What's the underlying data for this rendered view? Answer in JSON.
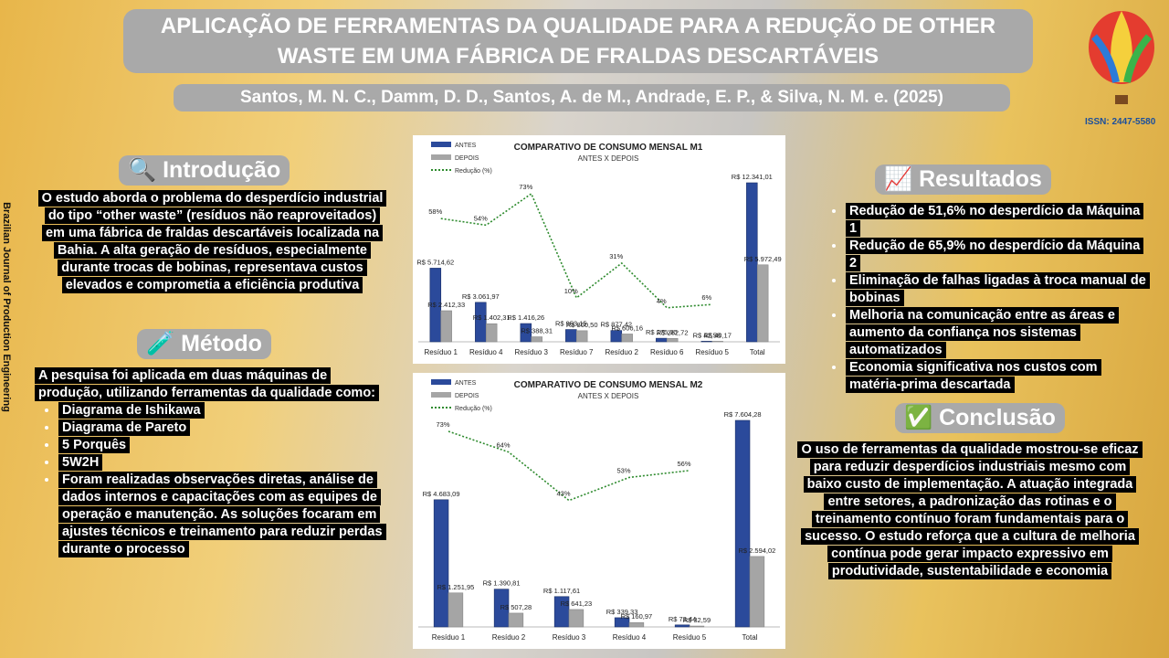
{
  "journal": "Brazilian Journal of Production Engineering",
  "header": {
    "title": "APLICAÇÃO DE FERRAMENTAS DA QUALIDADE PARA A REDUÇÃO DE OTHER WASTE EM UMA FÁBRICA DE FRALDAS DESCARTÁVEIS",
    "authors": "Santos, M. N. C., Damm, D. D., Santos, A. de M., Andrade, E. P., & Silva, N. M. e. (2025)",
    "issn": "ISSN: 2447-5580"
  },
  "introducao": {
    "heading": "🔍 Introdução",
    "text": "O estudo aborda o problema do desperdício industrial do tipo “other waste” (resíduos não reaproveitados) em uma fábrica de fraldas descartáveis localizada na Bahia. A alta geração de resíduos, especialmente durante trocas de bobinas, representava custos elevados e comprometia a eficiência produtiva"
  },
  "metodo": {
    "heading": "🧪 Método",
    "text": "A pesquisa foi aplicada em duas máquinas de produção, utilizando ferramentas da qualidade como:",
    "items": [
      "Diagrama de Ishikawa",
      "Diagrama de Pareto",
      "5 Porquês",
      "5W2H",
      "Foram realizadas observações diretas, análise de dados internos e capacitações com as equipes de operação e manutenção. As soluções focaram em ajustes técnicos e treinamento para reduzir perdas durante o processo"
    ]
  },
  "resultados": {
    "heading": "📈 Resultados",
    "items": [
      "Redução de 51,6% no desperdício da Máquina 1",
      "Redução de 65,9% no desperdício da Máquina 2",
      "Eliminação de falhas ligadas à troca manual de bobinas",
      "Melhoria na comunicação entre as áreas e aumento da confiança nos sistemas automatizados",
      "Economia significativa nos custos com matéria-prima descartada"
    ]
  },
  "conclusao": {
    "heading": "✅ Conclusão",
    "text": "O uso de ferramentas da qualidade mostrou-se eficaz para reduzir desperdícios industriais mesmo com baixo custo de implementação. A atuação integrada entre setores, a padronização das rotinas e o treinamento contínuo foram fundamentais para o sucesso. O estudo reforça que a cultura de melhoria contínua pode gerar impacto expressivo em produtividade, sustentabilidade e economia"
  },
  "chart_data": [
    {
      "type": "bar",
      "title": "COMPARATIVO DE CONSUMO MENSAL M1",
      "subtitle": "ANTES X DEPOIS",
      "categories": [
        "Resíduo 1",
        "Resíduo 4",
        "Resíduo 3",
        "Resíduo 7",
        "Resíduo 2",
        "Resíduo 6",
        "Resíduo 5",
        "Total"
      ],
      "series": [
        {
          "name": "ANTES",
          "color": "#2b4a9b",
          "values": [
            5714.62,
            3061.97,
            1416.26,
            953.15,
            877.42,
            275.0,
            42.58,
            12341.01
          ],
          "value_labels": [
            "R$ 5.714,62",
            "R$ 3.061,97",
            "R$ 1.416,26",
            "R$ 953,15",
            "R$ 877,42",
            "R$ 275,00",
            "R$ 42,58",
            "R$ 12.341,01"
          ]
        },
        {
          "name": "DEPOIS",
          "color": "#a5a5a5",
          "values": [
            2412.33,
            1402.31,
            388.31,
            860.5,
            606.16,
            262.72,
            40.17,
            5972.49
          ],
          "value_labels": [
            "R$ 2.412,33",
            "R$ 1.402,31",
            "R$ 388,31",
            "R$ 860,50",
            "R$ 606,16",
            "R$ 262,72",
            "R$ 40,17",
            "R$ 5.972,49"
          ]
        },
        {
          "name": "Redução (%)",
          "type": "line",
          "color": "#2e8b2e",
          "values": [
            58,
            54,
            73,
            10,
            31,
            4,
            6,
            null
          ],
          "value_labels": [
            "58%",
            "54%",
            "73%",
            "10%",
            "31%",
            "4%",
            "6%",
            null
          ]
        }
      ]
    },
    {
      "type": "bar",
      "title": "COMPARATIVO DE CONSUMO MENSAL M2",
      "subtitle": "ANTES X DEPOIS",
      "categories": [
        "Resíduo 1",
        "Resíduo 2",
        "Resíduo 3",
        "Resíduo 4",
        "Resíduo 5",
        "Total"
      ],
      "series": [
        {
          "name": "ANTES",
          "color": "#2b4a9b",
          "values": [
            4683.09,
            1390.81,
            1117.61,
            339.33,
            73.44,
            7604.28
          ],
          "value_labels": [
            "R$ 4.683,09",
            "R$ 1.390,81",
            "R$ 1.117,61",
            "R$ 339,33",
            "R$ 73,44",
            "R$ 7.604,28"
          ]
        },
        {
          "name": "DEPOIS",
          "color": "#a5a5a5",
          "values": [
            1251.95,
            507.28,
            641.23,
            160.97,
            32.59,
            2594.02
          ],
          "value_labels": [
            "R$ 1.251,95",
            "R$ 507,28",
            "R$ 641,23",
            "R$ 160,97",
            "R$ 32,59",
            "R$ 2.594,02"
          ]
        },
        {
          "name": "Redução (%)",
          "type": "line",
          "color": "#2e8b2e",
          "values": [
            73,
            64,
            43,
            53,
            56,
            null
          ],
          "value_labels": [
            "73%",
            "64%",
            "43%",
            "53%",
            "56%",
            null
          ]
        }
      ]
    }
  ]
}
